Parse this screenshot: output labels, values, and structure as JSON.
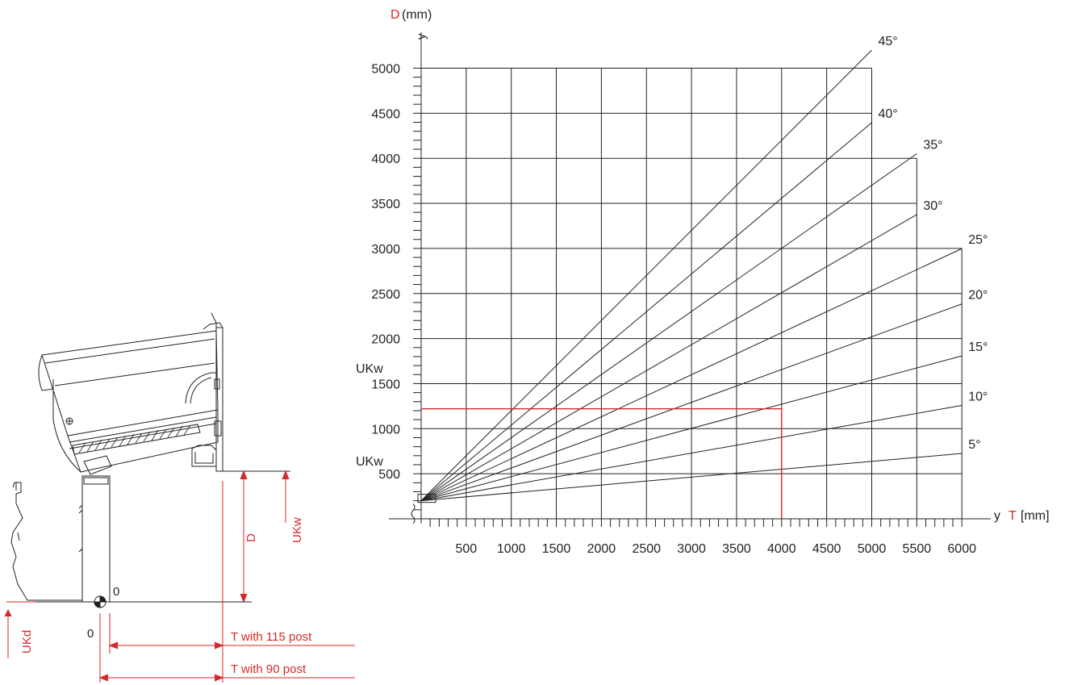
{
  "chart_data": {
    "type": "line",
    "y_axis": {
      "letter": "D",
      "unit": "(mm)",
      "tick_letter": "y",
      "range": [
        0,
        5000
      ],
      "ticks": [
        500,
        1000,
        1500,
        2000,
        2500,
        3000,
        3500,
        4000,
        4500,
        5000
      ],
      "marker_labels": [
        {
          "text": "UKw",
          "value": 1500
        },
        {
          "text": "UKw",
          "value": 750
        }
      ]
    },
    "x_axis": {
      "letter": "T",
      "unit": "[mm]",
      "tick_letter": "y",
      "range": [
        0,
        6000
      ],
      "ticks": [
        500,
        1000,
        1500,
        2000,
        2500,
        3000,
        3500,
        4000,
        4500,
        5000,
        5500,
        6000
      ]
    },
    "origin_offset": {
      "T": 0,
      "D": 200
    },
    "series": [
      {
        "name": "5°",
        "angle": 5,
        "x_end": 6000
      },
      {
        "name": "10°",
        "angle": 10,
        "x_end": 6000
      },
      {
        "name": "15°",
        "angle": 15,
        "x_end": 6000
      },
      {
        "name": "20°",
        "angle": 20,
        "x_end": 6000
      },
      {
        "name": "25°",
        "angle": 25,
        "x_end": 6000
      },
      {
        "name": "30°",
        "angle": 30,
        "x_end": 5500
      },
      {
        "name": "35°",
        "angle": 35,
        "x_end": 5500
      },
      {
        "name": "40°",
        "angle": 40,
        "x_end": 5000
      },
      {
        "name": "45°",
        "angle": 45,
        "x_end": 5000
      }
    ],
    "example": {
      "T": 4000,
      "D": 1220
    },
    "grid": true,
    "colors": {
      "line": "#222222",
      "accent": "#d42a2a"
    }
  },
  "drawing": {
    "labels": {
      "origin_right": "0",
      "origin_left": "0",
      "d_dim": "D",
      "ukw_dim": "UKw",
      "ukd_dim": "UKd",
      "t115": "T with 115 post",
      "t90": "T with 90 post"
    }
  }
}
